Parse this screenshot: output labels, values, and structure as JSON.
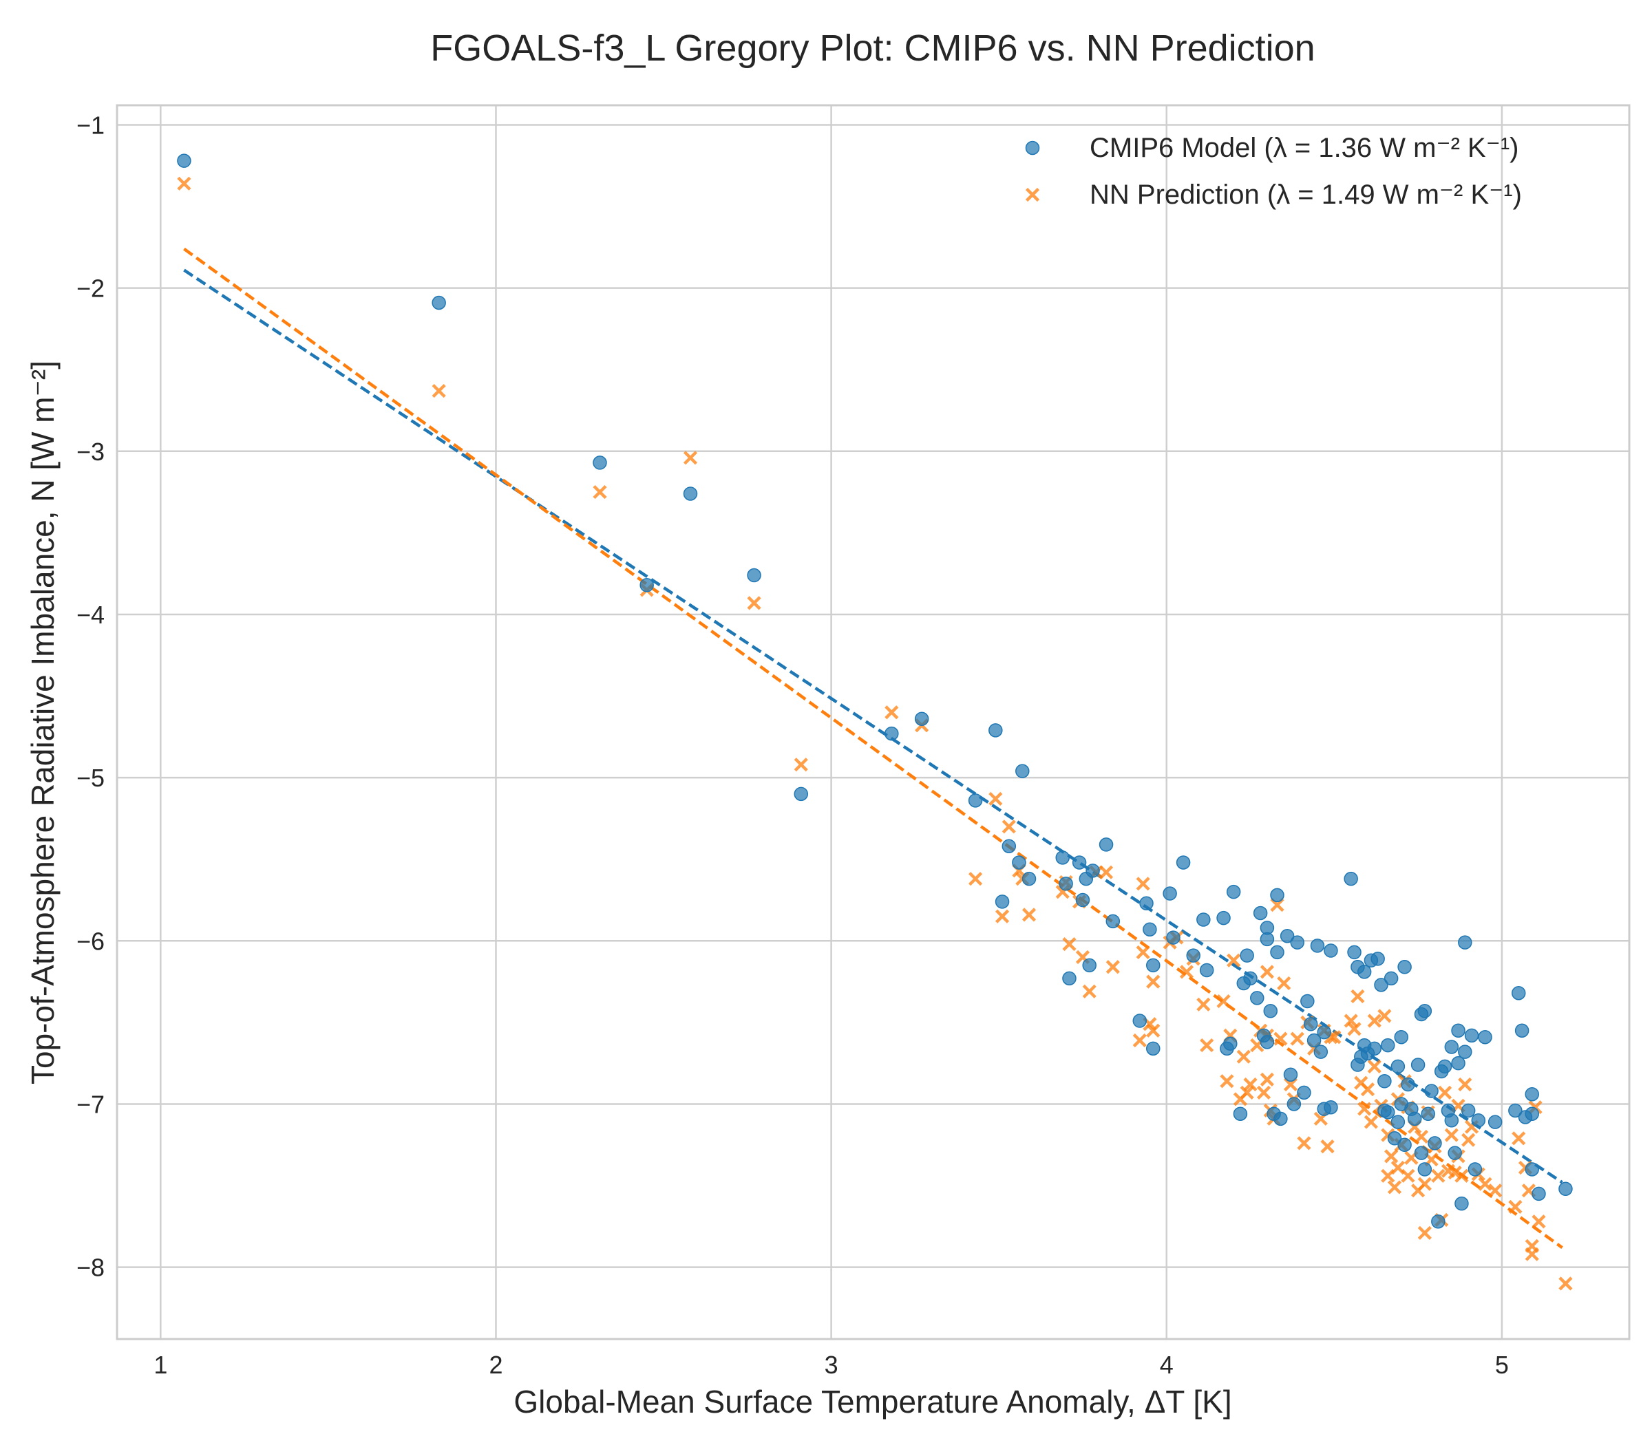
{
  "chart_data": {
    "type": "scatter",
    "title": "FGOALS-f3_L Gregory Plot: CMIP6 vs. NN Prediction",
    "xlabel": "Global-Mean Surface Temperature Anomaly, ΔT [K]",
    "ylabel": "Top-of-Atmosphere Radiative Imbalance, N [W m⁻²]",
    "xlim": [
      0.87,
      5.38
    ],
    "ylim": [
      -8.44,
      -0.88
    ],
    "xticks": [
      1,
      2,
      3,
      4,
      5
    ],
    "xtick_labels": [
      "1",
      "2",
      "3",
      "4",
      "5"
    ],
    "yticks": [
      -1,
      -2,
      -3,
      -4,
      -5,
      -6,
      -7,
      -8
    ],
    "ytick_labels": [
      "−1",
      "−2",
      "−3",
      "−4",
      "−5",
      "−6",
      "−7",
      "−8"
    ],
    "grid": true,
    "legend_position": "top-right",
    "series": [
      {
        "name": "CMIP6 Model (λ = 1.36 W m⁻² K⁻¹)",
        "marker": "circle",
        "color": "#1f77b4",
        "fit": {
          "x": [
            1.07,
            5.18
          ],
          "y": [
            -1.89,
            -7.48
          ]
        },
        "points": [
          [
            1.07,
            -1.22
          ],
          [
            1.83,
            -2.09
          ],
          [
            2.31,
            -3.07
          ],
          [
            2.58,
            -3.26
          ],
          [
            2.45,
            -3.82
          ],
          [
            2.77,
            -3.76
          ],
          [
            2.91,
            -5.1
          ],
          [
            3.18,
            -4.73
          ],
          [
            3.27,
            -4.64
          ],
          [
            3.43,
            -5.14
          ],
          [
            3.49,
            -4.71
          ],
          [
            3.57,
            -4.96
          ],
          [
            3.51,
            -5.76
          ],
          [
            3.53,
            -5.42
          ],
          [
            3.56,
            -5.52
          ],
          [
            3.59,
            -5.62
          ],
          [
            3.69,
            -5.49
          ],
          [
            3.7,
            -5.65
          ],
          [
            3.71,
            -6.23
          ],
          [
            3.74,
            -5.52
          ],
          [
            3.75,
            -5.75
          ],
          [
            3.76,
            -5.62
          ],
          [
            3.77,
            -6.15
          ],
          [
            3.78,
            -5.57
          ],
          [
            3.82,
            -5.41
          ],
          [
            3.84,
            -5.88
          ],
          [
            3.92,
            -6.49
          ],
          [
            3.94,
            -5.77
          ],
          [
            3.95,
            -5.93
          ],
          [
            3.96,
            -6.15
          ],
          [
            3.96,
            -6.66
          ],
          [
            4.01,
            -5.71
          ],
          [
            4.02,
            -5.98
          ],
          [
            4.05,
            -5.52
          ],
          [
            4.08,
            -6.09
          ],
          [
            4.11,
            -5.87
          ],
          [
            4.12,
            -6.18
          ],
          [
            4.17,
            -5.86
          ],
          [
            4.18,
            -6.66
          ],
          [
            4.19,
            -6.63
          ],
          [
            4.2,
            -5.7
          ],
          [
            4.22,
            -7.06
          ],
          [
            4.23,
            -6.26
          ],
          [
            4.24,
            -6.09
          ],
          [
            4.25,
            -6.23
          ],
          [
            4.27,
            -6.35
          ],
          [
            4.28,
            -5.83
          ],
          [
            4.29,
            -6.58
          ],
          [
            4.3,
            -5.92
          ],
          [
            4.3,
            -5.99
          ],
          [
            4.3,
            -6.62
          ],
          [
            4.31,
            -6.43
          ],
          [
            4.32,
            -7.06
          ],
          [
            4.33,
            -5.72
          ],
          [
            4.33,
            -6.07
          ],
          [
            4.34,
            -7.09
          ],
          [
            4.36,
            -5.97
          ],
          [
            4.37,
            -6.82
          ],
          [
            4.38,
            -7.0
          ],
          [
            4.39,
            -6.01
          ],
          [
            4.41,
            -6.93
          ],
          [
            4.42,
            -6.37
          ],
          [
            4.43,
            -6.51
          ],
          [
            4.44,
            -6.61
          ],
          [
            4.45,
            -6.03
          ],
          [
            4.46,
            -6.68
          ],
          [
            4.47,
            -6.56
          ],
          [
            4.47,
            -7.03
          ],
          [
            4.49,
            -6.06
          ],
          [
            4.49,
            -7.02
          ],
          [
            4.55,
            -5.62
          ],
          [
            4.56,
            -6.07
          ],
          [
            4.57,
            -6.16
          ],
          [
            4.57,
            -6.76
          ],
          [
            4.58,
            -6.71
          ],
          [
            4.59,
            -6.19
          ],
          [
            4.59,
            -6.64
          ],
          [
            4.6,
            -6.69
          ],
          [
            4.61,
            -6.12
          ],
          [
            4.62,
            -6.66
          ],
          [
            4.63,
            -6.11
          ],
          [
            4.64,
            -6.27
          ],
          [
            4.65,
            -6.86
          ],
          [
            4.65,
            -7.04
          ],
          [
            4.66,
            -6.64
          ],
          [
            4.66,
            -7.05
          ],
          [
            4.67,
            -6.23
          ],
          [
            4.68,
            -7.21
          ],
          [
            4.69,
            -6.77
          ],
          [
            4.69,
            -7.11
          ],
          [
            4.7,
            -6.59
          ],
          [
            4.7,
            -7.0
          ],
          [
            4.71,
            -6.16
          ],
          [
            4.71,
            -7.25
          ],
          [
            4.72,
            -6.88
          ],
          [
            4.73,
            -7.03
          ],
          [
            4.74,
            -7.09
          ],
          [
            4.75,
            -6.76
          ],
          [
            4.76,
            -7.3
          ],
          [
            4.76,
            -6.45
          ],
          [
            4.77,
            -6.43
          ],
          [
            4.77,
            -7.4
          ],
          [
            4.78,
            -7.06
          ],
          [
            4.79,
            -6.92
          ],
          [
            4.8,
            -7.24
          ],
          [
            4.81,
            -7.72
          ],
          [
            4.82,
            -6.8
          ],
          [
            4.83,
            -6.77
          ],
          [
            4.84,
            -7.04
          ],
          [
            4.85,
            -6.65
          ],
          [
            4.85,
            -7.1
          ],
          [
            4.86,
            -7.3
          ],
          [
            4.87,
            -6.55
          ],
          [
            4.87,
            -6.75
          ],
          [
            4.88,
            -7.61
          ],
          [
            4.89,
            -6.68
          ],
          [
            4.89,
            -6.01
          ],
          [
            4.9,
            -7.04
          ],
          [
            4.91,
            -6.58
          ],
          [
            4.92,
            -7.4
          ],
          [
            4.93,
            -7.1
          ],
          [
            4.95,
            -6.59
          ],
          [
            4.98,
            -7.11
          ],
          [
            5.04,
            -7.04
          ],
          [
            5.05,
            -6.32
          ],
          [
            5.06,
            -6.55
          ],
          [
            5.07,
            -7.08
          ],
          [
            5.09,
            -7.06
          ],
          [
            5.09,
            -6.94
          ],
          [
            5.09,
            -7.4
          ],
          [
            5.11,
            -7.55
          ],
          [
            5.19,
            -7.52
          ]
        ]
      },
      {
        "name": "NN Prediction (λ = 1.49 W m⁻² K⁻¹)",
        "marker": "x",
        "color": "#ff7f0e",
        "fit": {
          "x": [
            1.07,
            5.18
          ],
          "y": [
            -1.76,
            -7.88
          ]
        },
        "points": [
          [
            1.07,
            -1.36
          ],
          [
            1.83,
            -2.63
          ],
          [
            2.31,
            -3.25
          ],
          [
            2.58,
            -3.04
          ],
          [
            2.45,
            -3.85
          ],
          [
            2.77,
            -3.93
          ],
          [
            2.91,
            -4.92
          ],
          [
            3.18,
            -4.6
          ],
          [
            3.27,
            -4.68
          ],
          [
            3.43,
            -5.62
          ],
          [
            3.49,
            -5.13
          ],
          [
            3.51,
            -5.85
          ],
          [
            3.53,
            -5.3
          ],
          [
            3.56,
            -5.57
          ],
          [
            3.57,
            -5.62
          ],
          [
            3.59,
            -5.84
          ],
          [
            3.69,
            -5.7
          ],
          [
            3.7,
            -5.64
          ],
          [
            3.71,
            -6.02
          ],
          [
            3.74,
            -5.76
          ],
          [
            3.75,
            -6.1
          ],
          [
            3.77,
            -6.31
          ],
          [
            3.79,
            -5.58
          ],
          [
            3.82,
            -5.58
          ],
          [
            3.84,
            -6.16
          ],
          [
            3.92,
            -6.61
          ],
          [
            3.93,
            -5.65
          ],
          [
            3.93,
            -6.07
          ],
          [
            3.95,
            -6.51
          ],
          [
            3.96,
            -6.25
          ],
          [
            3.96,
            -6.55
          ],
          [
            4.01,
            -6.01
          ],
          [
            4.03,
            -5.98
          ],
          [
            4.06,
            -6.19
          ],
          [
            4.08,
            -6.11
          ],
          [
            4.11,
            -6.39
          ],
          [
            4.12,
            -6.64
          ],
          [
            4.17,
            -6.37
          ],
          [
            4.18,
            -6.86
          ],
          [
            4.19,
            -6.58
          ],
          [
            4.2,
            -6.12
          ],
          [
            4.22,
            -6.97
          ],
          [
            4.23,
            -6.71
          ],
          [
            4.24,
            -6.93
          ],
          [
            4.25,
            -6.88
          ],
          [
            4.27,
            -6.64
          ],
          [
            4.28,
            -6.55
          ],
          [
            4.29,
            -6.93
          ],
          [
            4.3,
            -6.19
          ],
          [
            4.3,
            -6.58
          ],
          [
            4.3,
            -6.85
          ],
          [
            4.31,
            -7.04
          ],
          [
            4.32,
            -7.09
          ],
          [
            4.33,
            -5.78
          ],
          [
            4.34,
            -6.6
          ],
          [
            4.35,
            -6.26
          ],
          [
            4.37,
            -6.88
          ],
          [
            4.38,
            -6.97
          ],
          [
            4.39,
            -6.6
          ],
          [
            4.41,
            -7.24
          ],
          [
            4.42,
            -6.5
          ],
          [
            4.44,
            -6.66
          ],
          [
            4.46,
            -7.09
          ],
          [
            4.47,
            -6.55
          ],
          [
            4.48,
            -7.26
          ],
          [
            4.49,
            -6.59
          ],
          [
            4.5,
            -6.59
          ],
          [
            4.55,
            -6.49
          ],
          [
            4.56,
            -6.54
          ],
          [
            4.57,
            -6.34
          ],
          [
            4.58,
            -6.87
          ],
          [
            4.59,
            -7.03
          ],
          [
            4.6,
            -6.91
          ],
          [
            4.61,
            -7.11
          ],
          [
            4.62,
            -6.49
          ],
          [
            4.62,
            -6.77
          ],
          [
            4.64,
            -7.01
          ],
          [
            4.65,
            -6.46
          ],
          [
            4.66,
            -7.19
          ],
          [
            4.66,
            -7.44
          ],
          [
            4.67,
            -7.32
          ],
          [
            4.68,
            -7.51
          ],
          [
            4.69,
            -6.97
          ],
          [
            4.69,
            -7.39
          ],
          [
            4.7,
            -7.25
          ],
          [
            4.71,
            -6.86
          ],
          [
            4.72,
            -7.44
          ],
          [
            4.72,
            -7.02
          ],
          [
            4.73,
            -7.33
          ],
          [
            4.74,
            -7.14
          ],
          [
            4.75,
            -7.53
          ],
          [
            4.76,
            -7.2
          ],
          [
            4.77,
            -7.49
          ],
          [
            4.77,
            -7.79
          ],
          [
            4.78,
            -7.05
          ],
          [
            4.79,
            -7.34
          ],
          [
            4.8,
            -7.26
          ],
          [
            4.81,
            -7.44
          ],
          [
            4.82,
            -7.71
          ],
          [
            4.83,
            -6.93
          ],
          [
            4.84,
            -7.41
          ],
          [
            4.85,
            -7.19
          ],
          [
            4.86,
            -7.42
          ],
          [
            4.87,
            -7.32
          ],
          [
            4.87,
            -7.01
          ],
          [
            4.88,
            -7.44
          ],
          [
            4.89,
            -6.88
          ],
          [
            4.9,
            -7.22
          ],
          [
            4.91,
            -7.14
          ],
          [
            4.93,
            -7.43
          ],
          [
            4.95,
            -7.49
          ],
          [
            4.98,
            -7.53
          ],
          [
            5.04,
            -7.63
          ],
          [
            5.05,
            -7.21
          ],
          [
            5.07,
            -7.39
          ],
          [
            5.08,
            -7.53
          ],
          [
            5.09,
            -7.87
          ],
          [
            5.09,
            -7.92
          ],
          [
            5.1,
            -7.02
          ],
          [
            5.11,
            -7.72
          ],
          [
            5.19,
            -8.1
          ]
        ]
      }
    ]
  }
}
